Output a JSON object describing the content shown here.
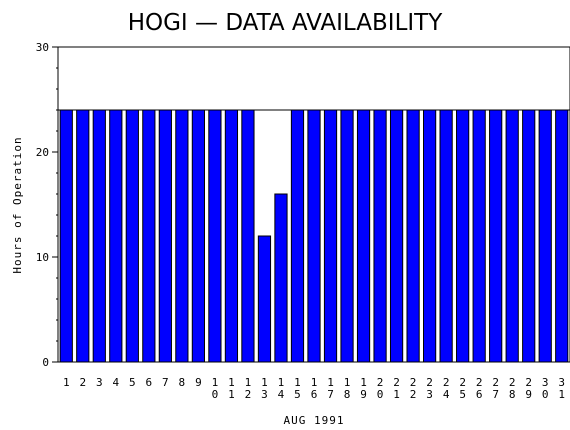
{
  "chart_data": {
    "type": "bar",
    "title": "HOGI — DATA AVAILABILITY",
    "xlabel": "AUG 1991",
    "ylabel": "Hours of Operation",
    "categories": [
      "1",
      "2",
      "3",
      "4",
      "5",
      "6",
      "7",
      "8",
      "9",
      "10",
      "11",
      "12",
      "13",
      "14",
      "15",
      "16",
      "17",
      "18",
      "19",
      "20",
      "21",
      "22",
      "23",
      "24",
      "25",
      "26",
      "27",
      "28",
      "29",
      "30",
      "31"
    ],
    "values": [
      24,
      24,
      24,
      24,
      24,
      24,
      24,
      24,
      24,
      24,
      24,
      24,
      12,
      16,
      24,
      24,
      24,
      24,
      24,
      24,
      24,
      24,
      24,
      24,
      24,
      24,
      24,
      24,
      24,
      24,
      24
    ],
    "expected_hours": 24,
    "ylim": [
      0,
      30
    ],
    "yticks": [
      "0",
      "10",
      "20",
      "30"
    ],
    "bar_color": "#0000ff",
    "grid": false
  }
}
